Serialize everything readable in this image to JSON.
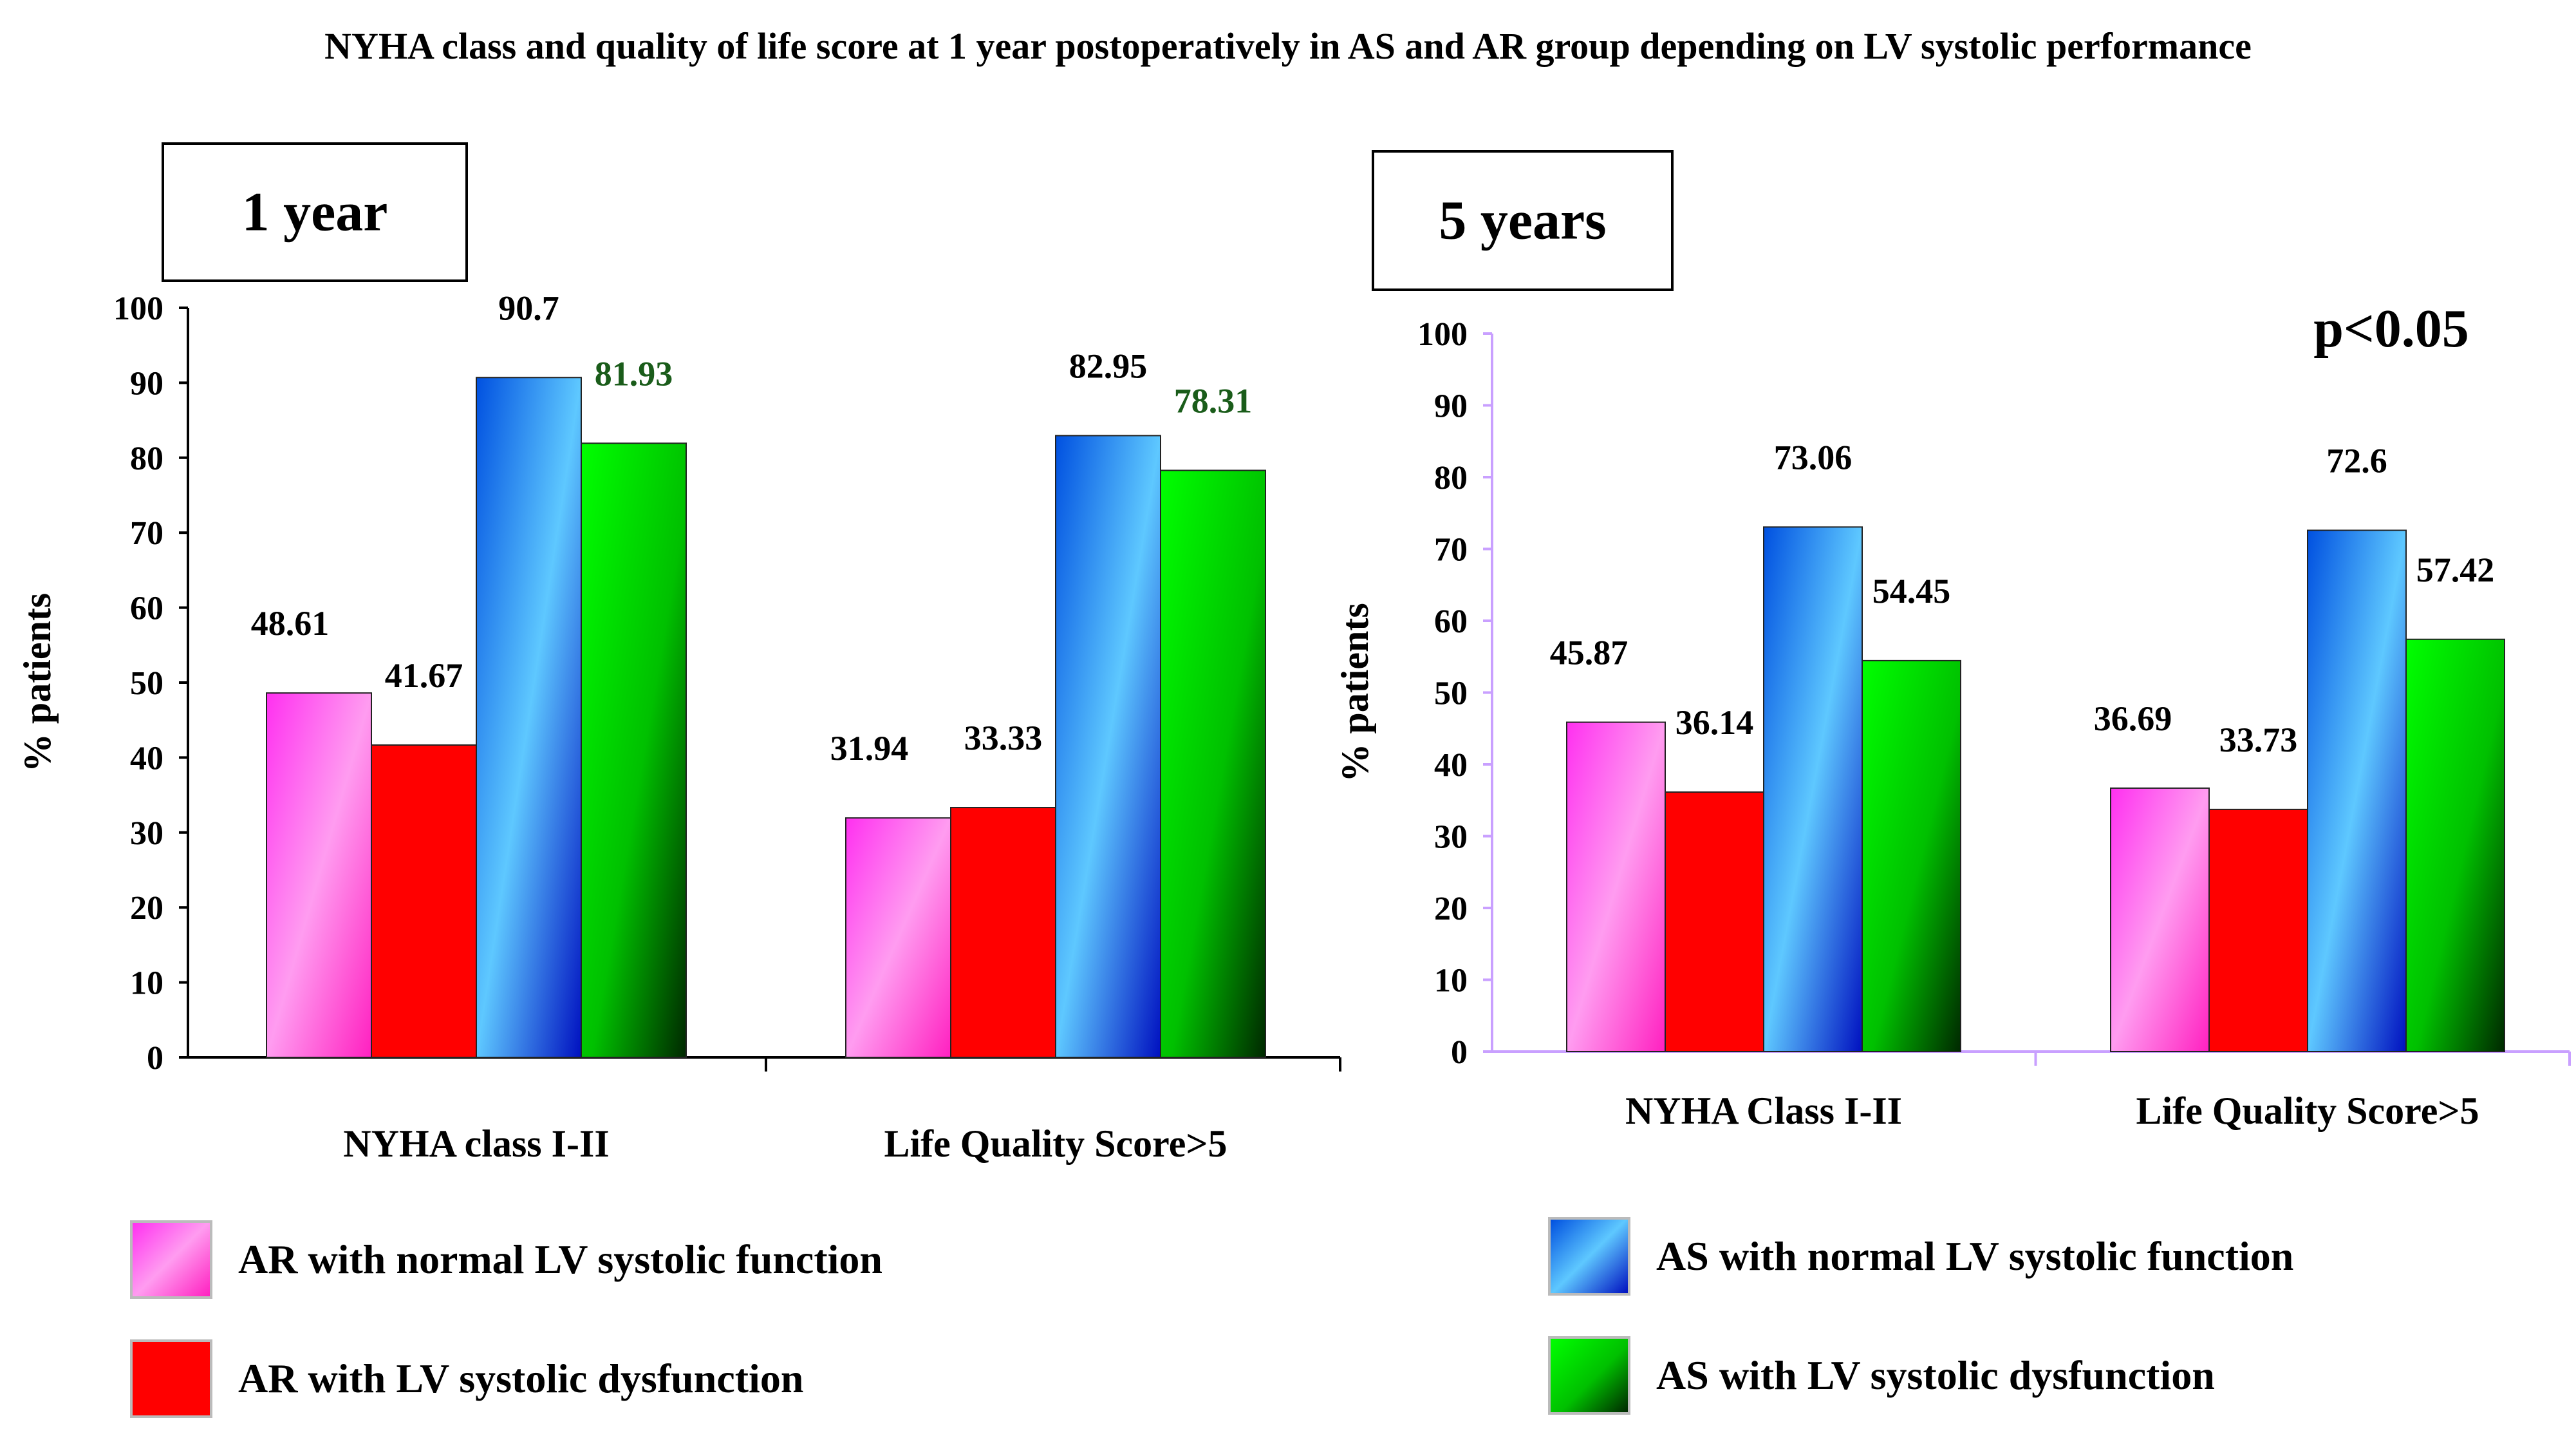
{
  "title": "NYHA class and quality of life score at 1 year postoperatively in AS and AR group depending on LV systolic performance",
  "series": [
    {
      "name": "AR with normal LV systolic function",
      "color": "#ff55dd"
    },
    {
      "name": "AR with LV systolic dysfunction",
      "color": "#ff0000"
    },
    {
      "name": "AS with normal LV systolic function",
      "color": "#2f8fff"
    },
    {
      "name": "AS with LV systolic dysfunction",
      "color": "#00c800"
    }
  ],
  "chart_data": [
    {
      "type": "bar",
      "title": "1 year",
      "ylabel": "% patients",
      "xlabel": "",
      "ylim": [
        0,
        100
      ],
      "yticks": [
        0,
        10,
        20,
        30,
        40,
        50,
        60,
        70,
        80,
        90,
        100
      ],
      "categories": [
        "NYHA class I-II",
        "Life Quality Score>5"
      ],
      "series": [
        {
          "name": "AR with normal LV systolic function",
          "values": [
            48.61,
            31.94
          ],
          "labels": [
            "48.61",
            "31.94"
          ]
        },
        {
          "name": "AR with LV systolic dysfunction",
          "values": [
            41.67,
            33.33
          ],
          "labels": [
            "41.67",
            "33.33"
          ]
        },
        {
          "name": "AS with normal LV systolic function",
          "values": [
            90.7,
            82.95
          ],
          "labels": [
            "90.7",
            "82.95"
          ]
        },
        {
          "name": "AS with LV systolic dysfunction",
          "values": [
            81.93,
            78.31
          ],
          "labels": [
            "81.93",
            "78.31"
          ]
        }
      ]
    },
    {
      "type": "bar",
      "title": "5 years",
      "ylabel": "% patients",
      "xlabel": "",
      "annotation": "p<0.05",
      "ylim": [
        0,
        100
      ],
      "yticks": [
        0,
        10,
        20,
        30,
        40,
        50,
        60,
        70,
        80,
        90,
        100
      ],
      "categories": [
        "NYHA Class I-II",
        "Life Quality Score>5"
      ],
      "series": [
        {
          "name": "AR with normal LV systolic function",
          "values": [
            45.87,
            36.69
          ],
          "labels": [
            "45.87",
            "36.69"
          ]
        },
        {
          "name": "AR with LV systolic dysfunction",
          "values": [
            36.14,
            33.73
          ],
          "labels": [
            "36.14",
            "33.73"
          ]
        },
        {
          "name": "AS with normal LV systolic function",
          "values": [
            73.06,
            72.6
          ],
          "labels": [
            "73.06",
            "72.6"
          ]
        },
        {
          "name": "AS with LV systolic dysfunction",
          "values": [
            54.45,
            57.42
          ],
          "labels": [
            "54.45",
            "57.42"
          ]
        }
      ]
    }
  ]
}
